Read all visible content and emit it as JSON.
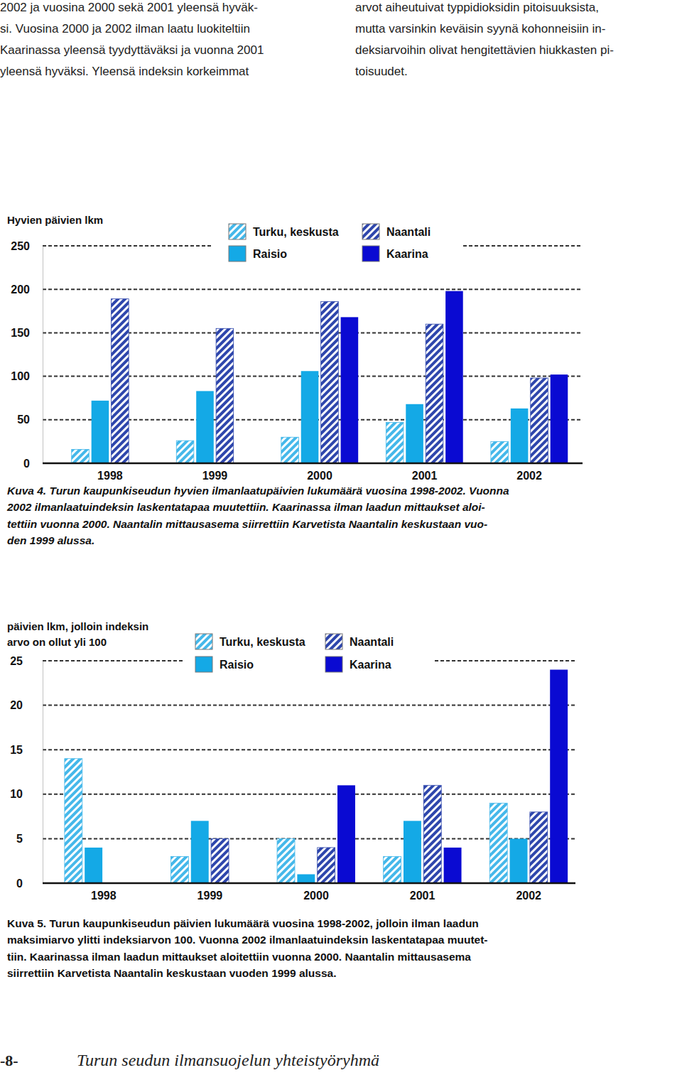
{
  "document": {
    "columns": [
      [
        "2002 ja vuosina 2000 sekä 2001 yleensä hyväk-",
        "si. Vuosina 2000 ja 2002 ilman laatu luokiteltiin",
        "Kaarinassa yleensä tyydyttäväksi ja vuonna 2001",
        "yleensä hyväksi. Yleensä indeksin korkeimmat"
      ],
      [
        "arvot aiheutuivat typpidioksidin pitoisuuksista,",
        "mutta varsinkin keväisin syynä kohonneisiin in-",
        "deksiarvoihin olivat hengitettävien hiukkasten pi-",
        "toisuudet."
      ]
    ],
    "footer": {
      "page": "-8-",
      "text": "Turun seudun ilmansuojelun yhteistyöryhmä"
    }
  },
  "chart_data": [
    {
      "type": "bar",
      "y_label": "Hyvien päivien lkm",
      "caption": [
        "Kuva 4. Turun kaupunkiseudun hyvien ilmanlaatupäivien lukumäärä vuosina 1998-2002. Vuonna",
        "2002 ilmanlaatuindeksin laskentatapaa muutettiin. Kaarinassa ilman laadun mittaukset aloi-",
        "tettiin vuonna 2000. Naantalin mittausasema siirrettiin Karvetista Naantalin keskustaan vuo-",
        "den 1999 alussa."
      ],
      "categories": [
        "1998",
        "1999",
        "2000",
        "2001",
        "2002"
      ],
      "series": [
        {
          "name": "Turku, keskusta",
          "color": "#45b8ea",
          "values": [
            16,
            26,
            30,
            47,
            25
          ]
        },
        {
          "name": "Raisio",
          "color": "#14a9e6",
          "values": [
            72,
            83,
            106,
            68,
            63
          ]
        },
        {
          "name": "Naantali",
          "color": "#2e46ac",
          "values": [
            189,
            155,
            186,
            160,
            98
          ]
        },
        {
          "name": "Kaarina",
          "color": "#0a0ad2",
          "values": [
            null,
            null,
            168,
            198,
            102
          ]
        }
      ],
      "ylim": [
        0,
        250
      ],
      "yticks": [
        0,
        50,
        100,
        150,
        200,
        250
      ],
      "grid": true
    },
    {
      "type": "bar",
      "y_label": "päivien lkm, jolloin indeksin\narvo on ollut yli 100",
      "caption": [
        "Kuva 5. Turun kaupunkiseudun päivien lukumäärä vuosina 1998-2002, jolloin ilman laadun",
        "maksimiarvo ylitti indeksiarvon 100. Vuonna 2002 ilmanlaatuindeksin laskentatapaa muutet-",
        "tiin. Kaarinassa ilman laadun mittaukset aloitettiin vuonna 2000. Naantalin mittausasema",
        "siirrettiin Karvetista Naantalin keskustaan vuoden 1999 alussa."
      ],
      "categories": [
        "1998",
        "1999",
        "2000",
        "2001",
        "2002"
      ],
      "series": [
        {
          "name": "Turku, keskusta",
          "color": "#45b8ea",
          "values": [
            14,
            3,
            5,
            3,
            9
          ]
        },
        {
          "name": "Raisio",
          "color": "#14a9e6",
          "values": [
            4,
            7,
            1,
            7,
            5
          ]
        },
        {
          "name": "Naantali",
          "color": "#2e46ac",
          "values": [
            null,
            5,
            4,
            11,
            8
          ]
        },
        {
          "name": "Kaarina",
          "color": "#0a0ad2",
          "values": [
            null,
            null,
            11,
            4,
            24
          ]
        }
      ],
      "ylim": [
        0,
        25
      ],
      "yticks": [
        0,
        5,
        10,
        15,
        20,
        25
      ],
      "grid": true
    }
  ]
}
